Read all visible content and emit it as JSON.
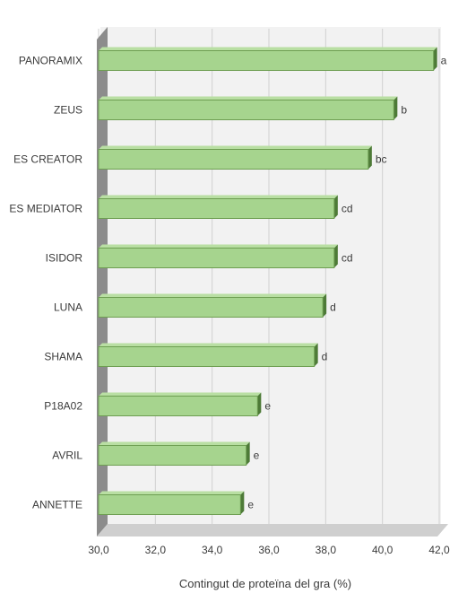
{
  "chart_data": {
    "type": "bar",
    "orientation": "horizontal",
    "categories": [
      "PANORAMIX",
      "ZEUS",
      "ES CREATOR",
      "ES MEDIATOR",
      "ISIDOR",
      "LUNA",
      "SHAMA",
      "P18A02",
      "AVRIL",
      "ANNETTE"
    ],
    "values": [
      41.8,
      40.4,
      39.5,
      38.3,
      38.3,
      37.9,
      37.6,
      35.6,
      35.2,
      35.0
    ],
    "significance": [
      "a",
      "b",
      "bc",
      "cd",
      "cd",
      "d",
      "d",
      "e",
      "e",
      "e"
    ],
    "xlabel": "Contingut de proteïna del gra (%)",
    "xlim": [
      30,
      42
    ],
    "xticks": [
      "30,0",
      "32,0",
      "34,0",
      "36,0",
      "38,0",
      "40,0",
      "42,0"
    ],
    "grid": true,
    "bar_color": "#a6d48e",
    "bar_edge_color": "#6e9e52",
    "bar_side_color": "#4d7a37",
    "wall_color": "#f2f2f2",
    "floor_color": "#8c8c8c"
  }
}
